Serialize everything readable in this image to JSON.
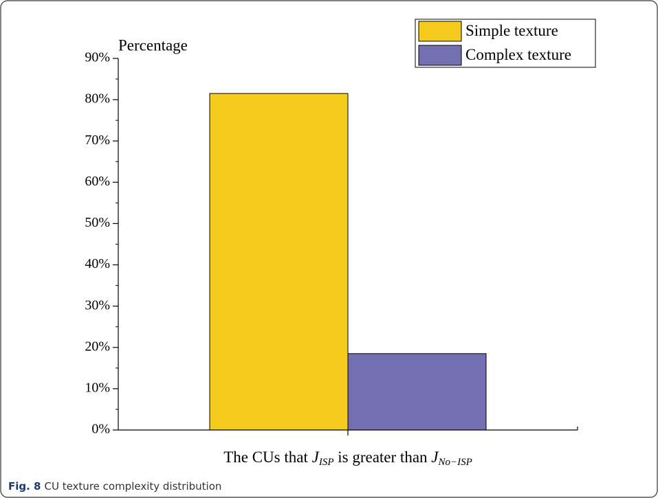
{
  "chart_data": {
    "type": "bar",
    "y_label": "Percentage",
    "x_label": {
      "text1": "The CUs that ",
      "var1": "J",
      "sub1": "ISP",
      "text2": " is greater than ",
      "var2": "J",
      "sub2": "No−ISP"
    },
    "categories": [
      null
    ],
    "series": [
      {
        "name": "Simple texture",
        "color": "#f5cc1e",
        "values": [
          81.5
        ]
      },
      {
        "name": "Complex texture",
        "color": "#7270b0",
        "values": [
          18.5
        ]
      }
    ],
    "ylim": [
      0,
      90
    ],
    "yticks": [
      {
        "value": 0,
        "label": "0%"
      },
      {
        "value": 10,
        "label": "10%"
      },
      {
        "value": 20,
        "label": "20%"
      },
      {
        "value": 30,
        "label": "30%"
      },
      {
        "value": 40,
        "label": "40%"
      },
      {
        "value": 50,
        "label": "50%"
      },
      {
        "value": 60,
        "label": "60%"
      },
      {
        "value": 70,
        "label": "70%"
      },
      {
        "value": 80,
        "label": "80%"
      },
      {
        "value": 90,
        "label": "90%"
      }
    ],
    "legend": "upper right",
    "caption": {
      "label": "Fig. 8",
      "text": "CU texture complexity distribution"
    }
  }
}
